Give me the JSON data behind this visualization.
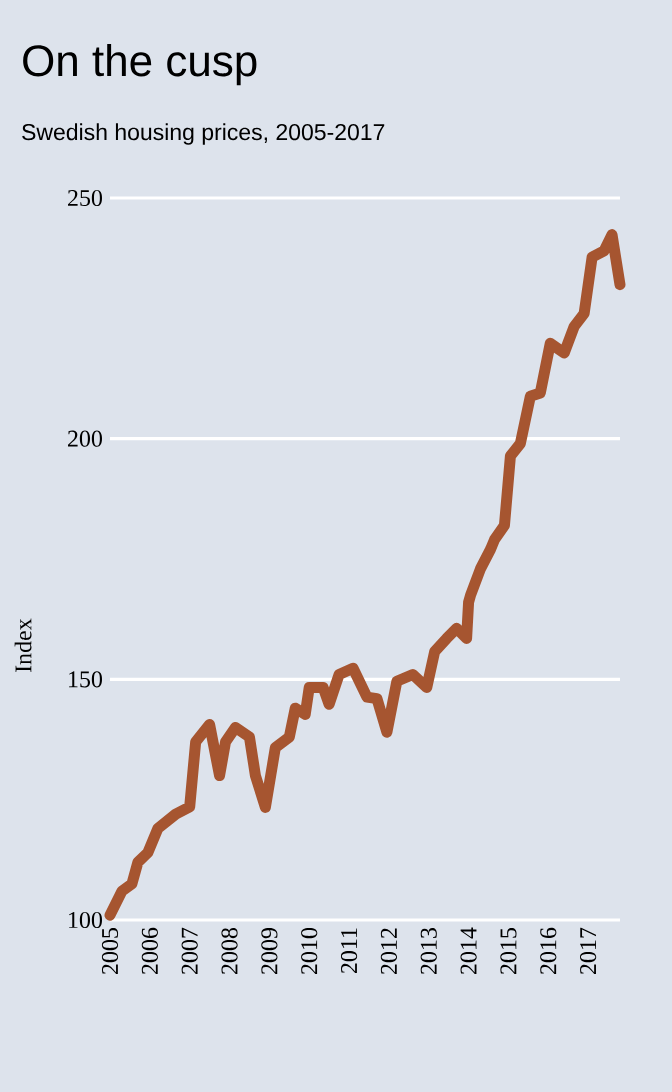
{
  "chart_data": {
    "type": "line",
    "title": "On the cusp",
    "subtitle": "Swedish housing prices, 2005-2017",
    "ylabel": "Index",
    "x": [
      2005.0,
      2005.3,
      2005.55,
      2005.7,
      2005.95,
      2006.2,
      2006.65,
      2007.0,
      2007.15,
      2007.5,
      2007.75,
      2007.9,
      2008.15,
      2008.5,
      2008.65,
      2008.9,
      2009.15,
      2009.5,
      2009.65,
      2009.9,
      2010.0,
      2010.35,
      2010.5,
      2010.75,
      2011.1,
      2011.45,
      2011.7,
      2011.95,
      2012.2,
      2012.6,
      2012.95,
      2013.15,
      2013.45,
      2013.7,
      2013.95,
      2014.0,
      2014.05,
      2014.3,
      2014.55,
      2014.65,
      2014.9,
      2015.05,
      2015.3,
      2015.55,
      2015.8,
      2016.05,
      2016.4,
      2016.65,
      2016.9,
      2017.1,
      2017.4,
      2017.6,
      2017.8
    ],
    "series": [
      {
        "color": "#a65530",
        "values": [
          101,
          106,
          107.5,
          112,
          114,
          119,
          122,
          123.5,
          137,
          140.6,
          130,
          137,
          140,
          138,
          130,
          123.4,
          135.8,
          138,
          144,
          142.7,
          148.3,
          148.3,
          144.8,
          151,
          152.3,
          146.3,
          146,
          139,
          149.6,
          151,
          148.3,
          155.8,
          158.5,
          160.6,
          158.5,
          166,
          167.5,
          173,
          177,
          179,
          182,
          196.4,
          199,
          208.8,
          209.5,
          219.8,
          217.8,
          223.3,
          226,
          237.7,
          239,
          242.4,
          232
        ]
      }
    ],
    "xlim": [
      2005,
      2017.8
    ],
    "xticks": [
      2005,
      2006,
      2007,
      2008,
      2009,
      2010,
      2011,
      2012,
      2013,
      2014,
      2015,
      2016,
      2017
    ],
    "ylim": [
      100,
      250
    ],
    "yticks": [
      100,
      150,
      200,
      250
    ],
    "grid": "y",
    "line_style": "solid",
    "marker": "none"
  }
}
